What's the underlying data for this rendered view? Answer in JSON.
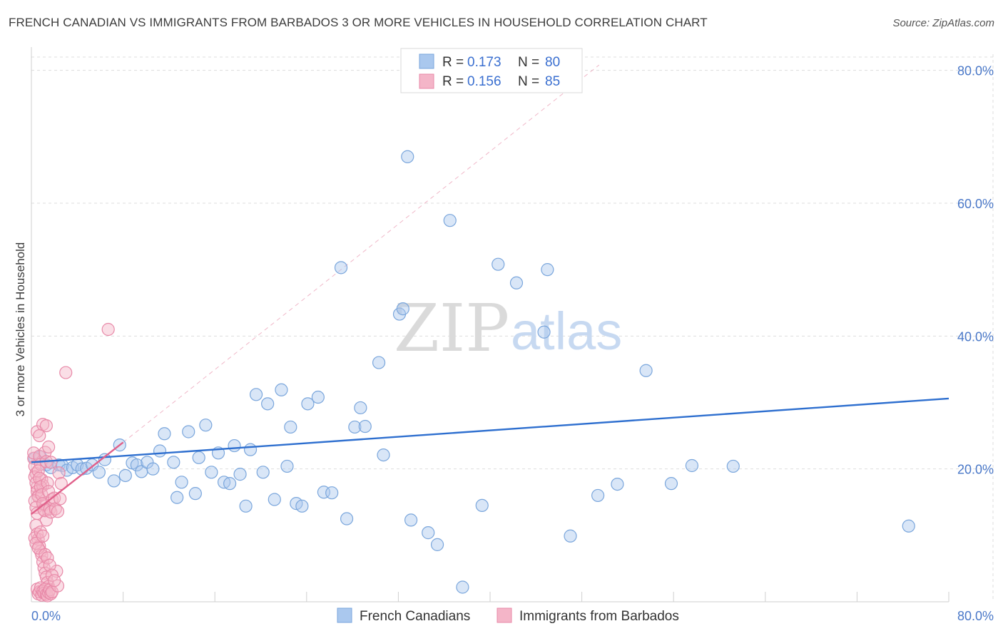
{
  "title": "FRENCH CANADIAN VS IMMIGRANTS FROM BARBADOS 3 OR MORE VEHICLES IN HOUSEHOLD CORRELATION CHART",
  "source": "Source: ZipAtlas.com",
  "watermark": {
    "zip": "ZIP",
    "atlas": "atlas"
  },
  "colors": {
    "blue_fill": "#aac8ee",
    "blue_stroke": "#7aa6dc",
    "blue_line": "#2e6fcf",
    "pink_fill": "#f4b5c8",
    "pink_stroke": "#e889a8",
    "pink_line": "#e0608a",
    "tick_text": "#4a78c8",
    "grid": "#dddddd"
  },
  "legend": {
    "rows": [
      {
        "r_label": "R =",
        "r_value": "0.173",
        "n_label": "N =",
        "n_value": "80"
      },
      {
        "r_label": "R =",
        "r_value": "0.156",
        "n_label": "N =",
        "n_value": "85"
      }
    ]
  },
  "bottom_legend": [
    "French Canadians",
    "Immigrants from Barbados"
  ],
  "chart_data": {
    "type": "scatter",
    "title": "FRENCH CANADIAN VS IMMIGRANTS FROM BARBADOS 3 OR MORE VEHICLES IN HOUSEHOLD CORRELATION CHART",
    "xlabel": "",
    "ylabel": "3 or more Vehicles in Household",
    "xlim": [
      0,
      80
    ],
    "ylim": [
      0,
      82
    ],
    "x_tick_labels": [
      "0.0%",
      "80.0%"
    ],
    "y_ticks": [
      20,
      40,
      60,
      80
    ],
    "y_tick_labels": [
      "20.0%",
      "40.0%",
      "60.0%",
      "80.0%"
    ],
    "grid": true,
    "legend_position": "top-center",
    "series": [
      {
        "name": "French Canadians",
        "color": "#aac8ee",
        "R": 0.173,
        "N": 80,
        "trend": {
          "x0": 0,
          "y0": 21.0,
          "x1": 80,
          "y1": 30.6
        },
        "points": [
          [
            0.3,
            21.6
          ],
          [
            0.8,
            21.8
          ],
          [
            1.3,
            20.6
          ],
          [
            1.7,
            20.2
          ],
          [
            2.4,
            20.6
          ],
          [
            2.7,
            20.5
          ],
          [
            3.1,
            19.8
          ],
          [
            3.6,
            20.2
          ],
          [
            4.0,
            20.6
          ],
          [
            4.4,
            20.0
          ],
          [
            4.8,
            20.1
          ],
          [
            5.3,
            20.6
          ],
          [
            5.9,
            19.5
          ],
          [
            6.4,
            21.4
          ],
          [
            7.2,
            18.2
          ],
          [
            7.7,
            23.6
          ],
          [
            8.2,
            19.0
          ],
          [
            8.8,
            20.9
          ],
          [
            9.2,
            20.6
          ],
          [
            9.6,
            19.6
          ],
          [
            10.1,
            21.0
          ],
          [
            10.6,
            20.0
          ],
          [
            11.2,
            22.7
          ],
          [
            11.6,
            25.3
          ],
          [
            12.4,
            21.0
          ],
          [
            12.7,
            15.7
          ],
          [
            13.1,
            18.0
          ],
          [
            13.7,
            25.6
          ],
          [
            14.3,
            16.3
          ],
          [
            14.6,
            21.7
          ],
          [
            15.2,
            26.6
          ],
          [
            15.7,
            19.5
          ],
          [
            16.3,
            22.4
          ],
          [
            16.8,
            18.0
          ],
          [
            17.3,
            17.8
          ],
          [
            17.7,
            23.5
          ],
          [
            18.2,
            19.2
          ],
          [
            18.7,
            14.4
          ],
          [
            19.1,
            22.9
          ],
          [
            19.6,
            31.2
          ],
          [
            20.2,
            19.5
          ],
          [
            20.6,
            29.8
          ],
          [
            21.2,
            15.4
          ],
          [
            21.8,
            31.9
          ],
          [
            22.3,
            20.4
          ],
          [
            22.6,
            26.3
          ],
          [
            23.1,
            14.8
          ],
          [
            23.6,
            14.4
          ],
          [
            24.1,
            29.8
          ],
          [
            25.0,
            30.8
          ],
          [
            25.5,
            16.5
          ],
          [
            26.2,
            16.4
          ],
          [
            27.0,
            50.3
          ],
          [
            27.5,
            12.5
          ],
          [
            28.2,
            26.3
          ],
          [
            28.7,
            29.2
          ],
          [
            29.1,
            26.4
          ],
          [
            30.3,
            36.0
          ],
          [
            30.7,
            22.1
          ],
          [
            32.1,
            43.3
          ],
          [
            32.4,
            44.1
          ],
          [
            32.8,
            67.0
          ],
          [
            33.1,
            12.3
          ],
          [
            34.6,
            10.4
          ],
          [
            35.4,
            8.6
          ],
          [
            36.5,
            57.4
          ],
          [
            37.6,
            2.2
          ],
          [
            39.3,
            14.5
          ],
          [
            40.7,
            50.8
          ],
          [
            42.3,
            48.0
          ],
          [
            44.7,
            40.6
          ],
          [
            45.0,
            50.0
          ],
          [
            47.0,
            9.9
          ],
          [
            49.4,
            16.0
          ],
          [
            51.1,
            17.7
          ],
          [
            53.6,
            34.8
          ],
          [
            55.8,
            17.8
          ],
          [
            57.6,
            20.5
          ],
          [
            61.2,
            20.4
          ],
          [
            76.5,
            11.4
          ]
        ]
      },
      {
        "name": "Immigrants from Barbados",
        "color": "#f4b5c8",
        "R": 0.156,
        "N": 85,
        "trend": {
          "x0": 0,
          "y0": 13.2,
          "x1": 8.0,
          "y1": 24.0
        },
        "trend_extension": {
          "x0": 8.0,
          "y0": 24.0,
          "x1": 49.5,
          "y1": 80.8
        },
        "points": [
          [
            0.2,
            21.6
          ],
          [
            0.3,
            20.4
          ],
          [
            0.4,
            19.3
          ],
          [
            0.5,
            17.2
          ],
          [
            0.6,
            16.0
          ],
          [
            0.2,
            22.4
          ],
          [
            0.3,
            18.8
          ],
          [
            0.4,
            17.9
          ],
          [
            0.5,
            16.6
          ],
          [
            0.6,
            15.8
          ],
          [
            0.7,
            21.9
          ],
          [
            0.8,
            20.7
          ],
          [
            0.9,
            18.4
          ],
          [
            1.0,
            17.5
          ],
          [
            1.1,
            14.6
          ],
          [
            1.2,
            13.7
          ],
          [
            1.3,
            12.3
          ],
          [
            0.4,
            11.5
          ],
          [
            0.5,
            10.2
          ],
          [
            0.6,
            9.4
          ],
          [
            0.7,
            8.4
          ],
          [
            0.8,
            7.6
          ],
          [
            0.9,
            7.0
          ],
          [
            1.0,
            6.0
          ],
          [
            1.1,
            5.1
          ],
          [
            1.2,
            4.3
          ],
          [
            1.3,
            3.7
          ],
          [
            1.4,
            2.9
          ],
          [
            1.5,
            2.3
          ],
          [
            0.5,
            1.9
          ],
          [
            0.6,
            1.2
          ],
          [
            0.7,
            1.5
          ],
          [
            0.8,
            2.1
          ],
          [
            0.9,
            1.0
          ],
          [
            1.0,
            1.6
          ],
          [
            1.1,
            1.3
          ],
          [
            1.2,
            1.9
          ],
          [
            1.3,
            1.1
          ],
          [
            1.4,
            0.9
          ],
          [
            1.5,
            1.4
          ],
          [
            1.6,
            1.8
          ],
          [
            1.7,
            1.2
          ],
          [
            1.8,
            1.5
          ],
          [
            0.3,
            15.2
          ],
          [
            0.4,
            14.2
          ],
          [
            0.5,
            13.3
          ],
          [
            0.6,
            19.7
          ],
          [
            0.7,
            18.6
          ],
          [
            0.8,
            17.3
          ],
          [
            0.9,
            16.1
          ],
          [
            1.0,
            14.8
          ],
          [
            1.1,
            13.8
          ],
          [
            1.2,
            22.5
          ],
          [
            1.3,
            21.1
          ],
          [
            1.4,
            17.9
          ],
          [
            1.5,
            16.6
          ],
          [
            1.6,
            14.0
          ],
          [
            1.7,
            13.5
          ],
          [
            1.8,
            15.4
          ],
          [
            2.0,
            15.6
          ],
          [
            2.2,
            4.6
          ],
          [
            2.3,
            2.4
          ],
          [
            2.4,
            19.4
          ],
          [
            2.6,
            17.8
          ],
          [
            3.0,
            34.5
          ],
          [
            0.5,
            25.6
          ],
          [
            0.7,
            25.0
          ],
          [
            1.0,
            26.7
          ],
          [
            1.3,
            26.5
          ],
          [
            1.5,
            23.3
          ],
          [
            1.7,
            21.0
          ],
          [
            0.3,
            9.6
          ],
          [
            0.4,
            8.8
          ],
          [
            0.6,
            8.1
          ],
          [
            0.8,
            10.5
          ],
          [
            1.0,
            9.9
          ],
          [
            1.2,
            7.1
          ],
          [
            1.4,
            6.6
          ],
          [
            1.6,
            5.5
          ],
          [
            1.8,
            4.0
          ],
          [
            2.0,
            3.2
          ],
          [
            2.1,
            14.0
          ],
          [
            2.3,
            13.6
          ],
          [
            2.5,
            15.5
          ],
          [
            6.7,
            41.0
          ]
        ]
      }
    ]
  }
}
